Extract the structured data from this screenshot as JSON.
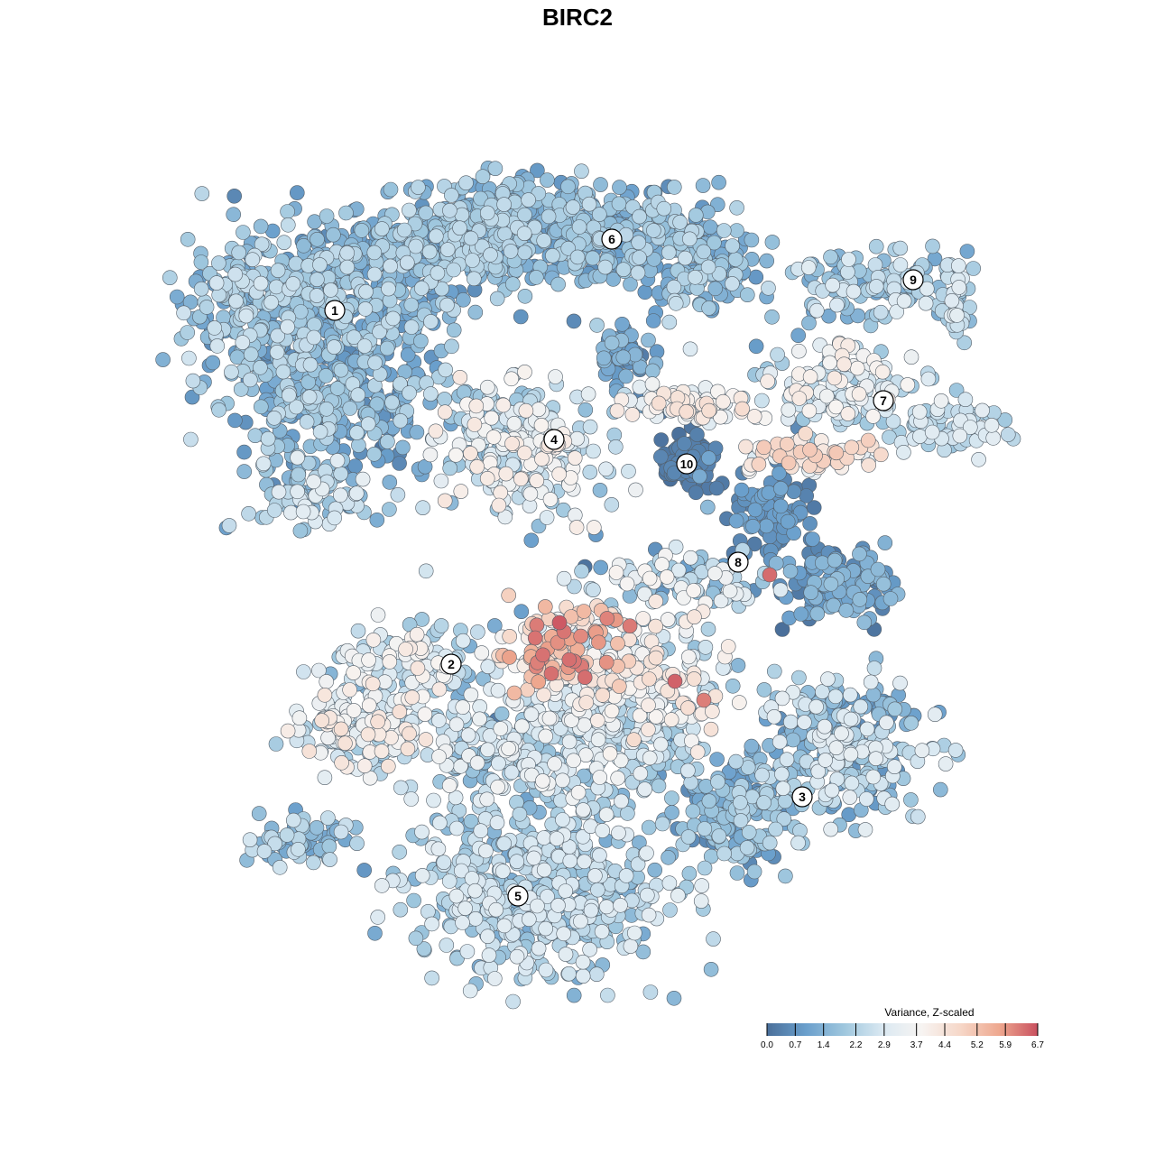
{
  "chart_data": {
    "type": "scatter",
    "title": "BIRC2",
    "xlabel": "",
    "ylabel": "",
    "grid": false,
    "legend_position": "bottom-right",
    "colorbar": {
      "title": "Variance, Z-scaled",
      "min": 0.0,
      "max": 6.7,
      "ticks": [
        "0.0",
        "0.7",
        "1.4",
        "2.2",
        "2.9",
        "3.7",
        "4.4",
        "5.2",
        "5.9",
        "6.7"
      ],
      "colors": [
        "#4a6f9a",
        "#6a9fcc",
        "#9fc7de",
        "#dbe9f2",
        "#f7f4f2",
        "#f6d7c8",
        "#eea88f",
        "#c9505f"
      ]
    },
    "clusters": [
      {
        "label": "1"
      },
      {
        "label": "2"
      },
      {
        "label": "3"
      },
      {
        "label": "4"
      },
      {
        "label": "5"
      },
      {
        "label": "6"
      },
      {
        "label": "7"
      },
      {
        "label": "8"
      },
      {
        "label": "9"
      },
      {
        "label": "10"
      }
    ]
  }
}
